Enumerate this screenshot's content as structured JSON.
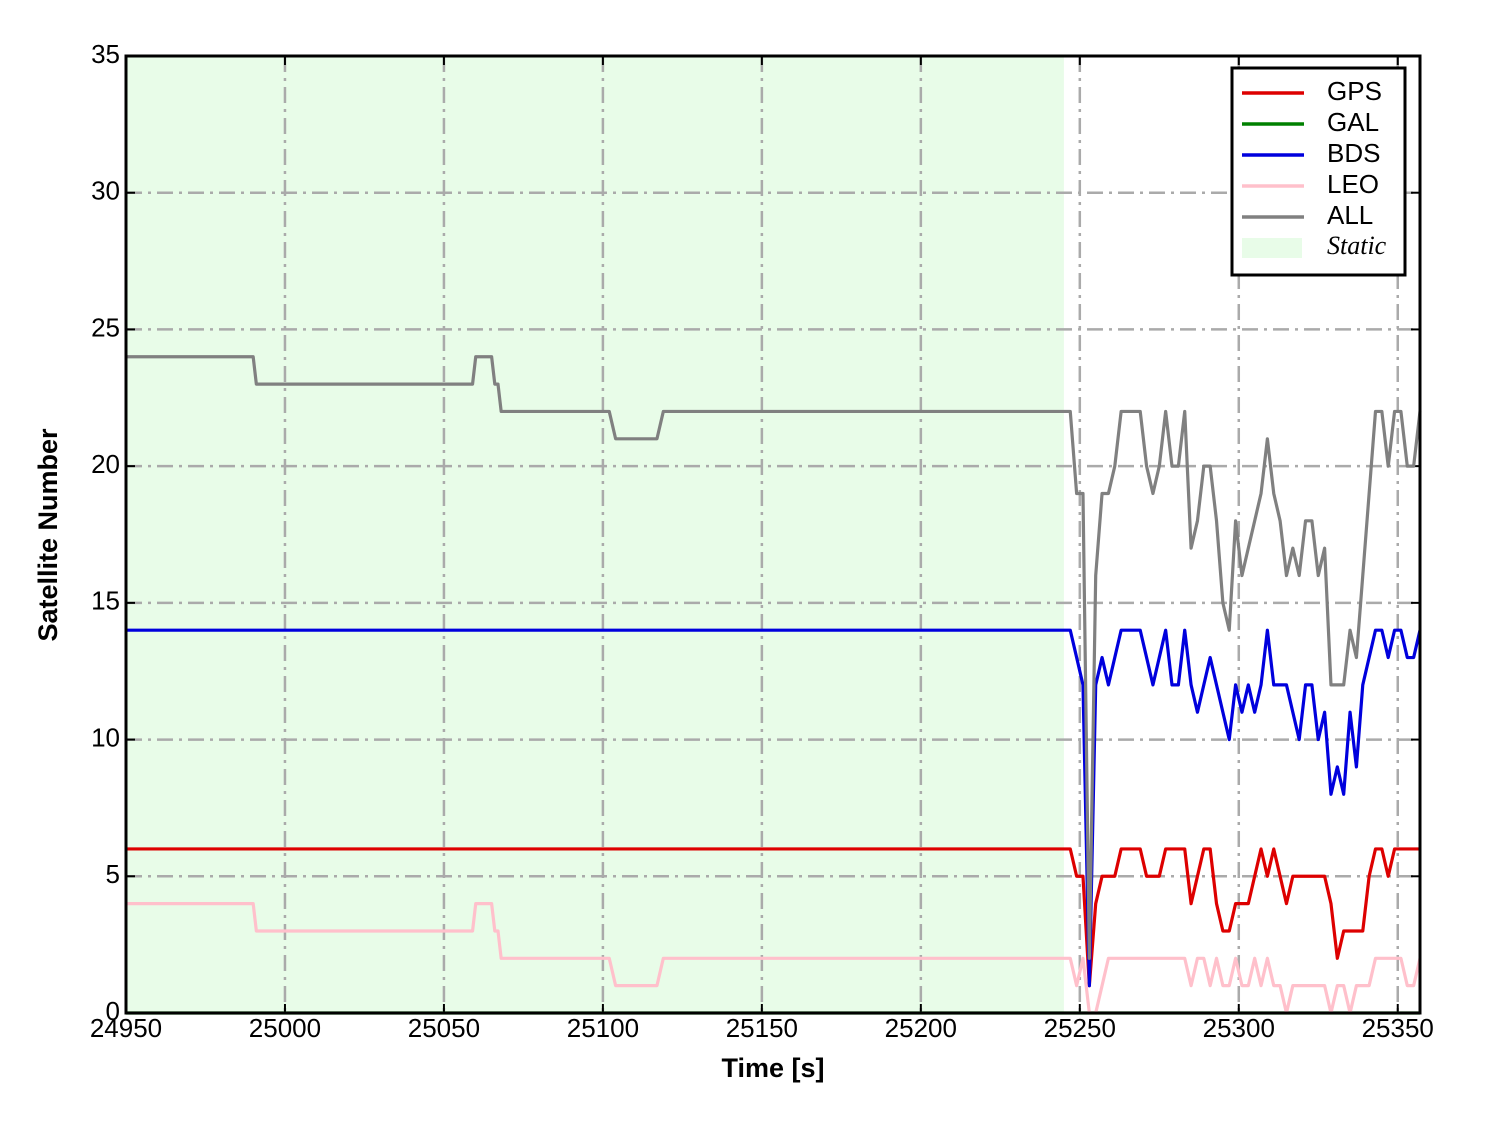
{
  "chart_data": {
    "type": "line",
    "xlabel": "Time [s]",
    "ylabel": "Satellite Number",
    "xlim": [
      24950,
      25357
    ],
    "ylim": [
      0,
      35
    ],
    "xticks": [
      24950,
      25000,
      25050,
      25100,
      25150,
      25200,
      25250,
      25300,
      25350
    ],
    "yticks": [
      0,
      5,
      10,
      15,
      20,
      25,
      30,
      35
    ],
    "grid": true,
    "legend": "upper right",
    "static_region": {
      "label": "Static",
      "xlim": [
        24950,
        25245
      ],
      "color": "#e8fce8"
    },
    "x": [
      24950,
      24990,
      24991,
      25059,
      25060,
      25065,
      25066,
      25067,
      25068,
      25102,
      25104,
      25117,
      25119,
      25245,
      25247,
      25249,
      25251,
      25253,
      25255,
      25257,
      25259,
      25261,
      25263,
      25265,
      25267,
      25269,
      25271,
      25273,
      25275,
      25277,
      25279,
      25281,
      25283,
      25285,
      25287,
      25289,
      25291,
      25293,
      25295,
      25297,
      25299,
      25301,
      25303,
      25305,
      25307,
      25309,
      25311,
      25313,
      25315,
      25317,
      25319,
      25321,
      25323,
      25325,
      25327,
      25329,
      25331,
      25333,
      25335,
      25337,
      25339,
      25341,
      25343,
      25345,
      25347,
      25349,
      25351,
      25353,
      25355,
      25357
    ],
    "series": [
      {
        "name": "GPS",
        "color": "#dd0000",
        "values": [
          6,
          6,
          6,
          6,
          6,
          6,
          6,
          6,
          6,
          6,
          6,
          6,
          6,
          6,
          6,
          5,
          5,
          1,
          4,
          5,
          5,
          5,
          6,
          6,
          6,
          6,
          5,
          5,
          5,
          6,
          6,
          6,
          6,
          4,
          5,
          6,
          6,
          4,
          3,
          3,
          4,
          4,
          4,
          5,
          6,
          5,
          6,
          5,
          4,
          5,
          5,
          5,
          5,
          5,
          5,
          4,
          2,
          3,
          3,
          3,
          3,
          5,
          6,
          6,
          5,
          6,
          6,
          6,
          6,
          6
        ]
      },
      {
        "name": "GAL",
        "color": "#008000",
        "values": [
          0,
          0,
          0,
          0,
          0,
          0,
          0,
          0,
          0,
          0,
          0,
          0,
          0,
          0,
          0,
          0,
          0,
          0,
          0,
          0,
          0,
          0,
          0,
          0,
          0,
          0,
          0,
          0,
          0,
          0,
          0,
          0,
          0,
          0,
          0,
          0,
          0,
          0,
          0,
          0,
          0,
          0,
          0,
          0,
          0,
          0,
          0,
          0,
          0,
          0,
          0,
          0,
          0,
          0,
          0,
          0,
          0,
          0,
          0,
          0,
          0,
          0,
          0,
          0,
          0,
          0,
          0,
          0,
          0,
          0
        ]
      },
      {
        "name": "BDS",
        "color": "#0000dd",
        "values": [
          14,
          14,
          14,
          14,
          14,
          14,
          14,
          14,
          14,
          14,
          14,
          14,
          14,
          14,
          14,
          13,
          12,
          1,
          12,
          13,
          12,
          13,
          14,
          14,
          14,
          14,
          13,
          12,
          13,
          14,
          12,
          12,
          14,
          12,
          11,
          12,
          13,
          12,
          11,
          10,
          12,
          11,
          12,
          11,
          12,
          14,
          12,
          12,
          12,
          11,
          10,
          12,
          12,
          10,
          11,
          8,
          9,
          8,
          11,
          9,
          12,
          13,
          14,
          14,
          13,
          14,
          14,
          13,
          13,
          14
        ]
      },
      {
        "name": "LEO",
        "color": "#ffc0cb",
        "values": [
          4,
          4,
          3,
          3,
          4,
          4,
          3,
          3,
          2,
          2,
          1,
          1,
          2,
          2,
          2,
          1,
          2,
          0,
          0,
          1,
          2,
          2,
          2,
          2,
          2,
          2,
          2,
          2,
          2,
          2,
          2,
          2,
          2,
          1,
          2,
          2,
          1,
          2,
          1,
          1,
          2,
          1,
          1,
          2,
          1,
          2,
          1,
          1,
          0,
          1,
          1,
          1,
          1,
          1,
          1,
          0,
          1,
          1,
          0,
          1,
          1,
          1,
          2,
          2,
          2,
          2,
          2,
          1,
          1,
          2
        ]
      },
      {
        "name": "ALL",
        "color": "#808080",
        "values": [
          24,
          24,
          23,
          23,
          24,
          24,
          23,
          23,
          22,
          22,
          21,
          21,
          22,
          22,
          22,
          19,
          19,
          2,
          16,
          19,
          19,
          20,
          22,
          22,
          22,
          22,
          20,
          19,
          20,
          22,
          20,
          20,
          22,
          17,
          18,
          20,
          20,
          18,
          15,
          14,
          18,
          16,
          17,
          18,
          19,
          21,
          19,
          18,
          16,
          17,
          16,
          18,
          18,
          16,
          17,
          12,
          12,
          12,
          14,
          13,
          16,
          19,
          22,
          22,
          20,
          22,
          22,
          20,
          20,
          22
        ]
      }
    ]
  }
}
